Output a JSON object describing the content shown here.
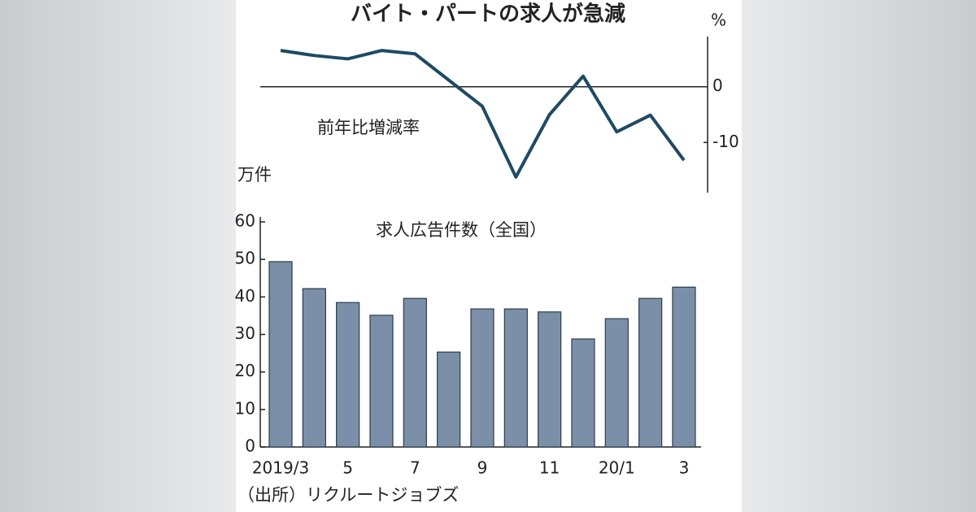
{
  "chart_data": [
    {
      "type": "line",
      "title": "バイト・パートの求人が急減",
      "y_unit": "%",
      "label": "前年比増減率",
      "values": [
        6.5,
        5.6,
        5.0,
        6.5,
        5.9,
        1.2,
        -3.5,
        -16.2,
        -5.0,
        1.9,
        -8.1,
        -5.1,
        -13.2
      ],
      "color": "#1f4a63",
      "ylim": [
        -19,
        9
      ],
      "yticks": [
        0,
        -10
      ]
    },
    {
      "type": "bar",
      "ylabel": "万件",
      "label": "求人広告件数（全国）",
      "note": "（出所）リクルートジョブズ",
      "categories": [
        "2019/3",
        null,
        "5",
        null,
        "7",
        null,
        "9",
        null,
        "11",
        null,
        "20/1",
        null,
        "3"
      ],
      "values": [
        49.4,
        42.2,
        38.5,
        35.1,
        39.6,
        25.3,
        36.8,
        36.8,
        36.0,
        28.8,
        34.2,
        39.6,
        42.6
      ],
      "color": "#7b8fa8",
      "ylim": [
        0,
        60
      ],
      "yticks": [
        0,
        10,
        20,
        30,
        40,
        50,
        60
      ]
    }
  ]
}
